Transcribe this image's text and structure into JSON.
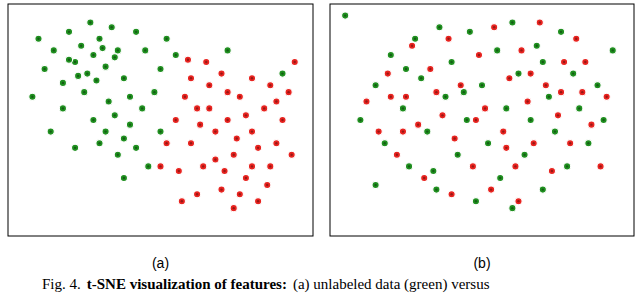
{
  "chart_data": [
    {
      "type": "scatter",
      "title": "(a)",
      "xlim": [
        0,
        100
      ],
      "ylim": [
        0,
        100
      ],
      "tick_labels": false,
      "marker": "ring",
      "series": [
        {
          "color": "#1f8f1f",
          "x": [
            8,
            12,
            15,
            18,
            20,
            22,
            24,
            26,
            28,
            30,
            32,
            34,
            36,
            38,
            25,
            18,
            28,
            32,
            35,
            38,
            40,
            42,
            36,
            30,
            44,
            48,
            50,
            45,
            42,
            52,
            55,
            40,
            46,
            38,
            50,
            14,
            22,
            10,
            27,
            33,
            20,
            29,
            23,
            35,
            31,
            72,
            90
          ],
          "values": [
            60,
            72,
            80,
            66,
            88,
            75,
            82,
            70,
            78,
            85,
            73,
            90,
            80,
            68,
            62,
            55,
            50,
            45,
            52,
            42,
            48,
            38,
            35,
            40,
            55,
            62,
            72,
            80,
            88,
            85,
            78,
            60,
            30,
            25,
            45,
            45,
            38,
            85,
            92,
            58,
            76,
            67,
            69,
            77,
            81,
            80,
            70
          ]
        },
        {
          "color": "#e8231f",
          "x": [
            55,
            58,
            60,
            62,
            64,
            66,
            68,
            70,
            72,
            74,
            76,
            78,
            80,
            82,
            84,
            86,
            88,
            90,
            92,
            70,
            65,
            60,
            52,
            56,
            62,
            74,
            80,
            85,
            75,
            68,
            63,
            78,
            82,
            88,
            93,
            57,
            72,
            66,
            80,
            76,
            86,
            94,
            50,
            59,
            71
          ],
          "values": [
            50,
            60,
            40,
            55,
            30,
            65,
            45,
            20,
            50,
            35,
            60,
            25,
            45,
            15,
            55,
            30,
            40,
            50,
            62,
            70,
            75,
            68,
            40,
            28,
            18,
            12,
            68,
            22,
            42,
            33,
            48,
            52,
            38,
            58,
            35,
            15,
            62,
            55,
            30,
            18,
            65,
            75,
            30,
            76,
            28
          ]
        }
      ]
    },
    {
      "type": "scatter",
      "title": "(b)",
      "xlim": [
        0,
        100
      ],
      "ylim": [
        0,
        100
      ],
      "tick_labels": false,
      "marker": "ring",
      "series": [
        {
          "color": "#1f8f1f",
          "x": [
            10,
            15,
            18,
            20,
            24,
            26,
            28,
            30,
            32,
            35,
            36,
            38,
            40,
            42,
            45,
            46,
            48,
            50,
            52,
            55,
            56,
            58,
            60,
            62,
            64,
            66,
            68,
            70,
            72,
            74,
            76,
            78,
            80,
            82,
            85,
            88,
            90,
            25,
            44,
            60,
            34,
            70,
            15,
            93,
            5
          ],
          "values": [
            50,
            65,
            40,
            78,
            55,
            30,
            85,
            68,
            45,
            20,
            90,
            60,
            75,
            35,
            50,
            88,
            15,
            65,
            40,
            80,
            25,
            55,
            92,
            70,
            35,
            50,
            82,
            20,
            60,
            45,
            88,
            30,
            70,
            55,
            40,
            65,
            50,
            72,
            62,
            12,
            28,
            75,
            22,
            80,
            95
          ]
        },
        {
          "color": "#e8231f",
          "x": [
            12,
            16,
            19,
            22,
            25,
            27,
            29,
            31,
            33,
            37,
            39,
            41,
            43,
            47,
            49,
            51,
            53,
            54,
            57,
            59,
            61,
            63,
            65,
            67,
            69,
            71,
            73,
            75,
            77,
            79,
            81,
            83,
            86,
            89,
            91,
            35,
            58,
            40,
            66,
            24,
            76,
            48,
            84,
            20,
            62
          ],
          "values": [
            58,
            45,
            70,
            35,
            60,
            82,
            48,
            25,
            72,
            52,
            85,
            42,
            65,
            30,
            78,
            55,
            20,
            90,
            45,
            68,
            30,
            80,
            58,
            40,
            92,
            65,
            28,
            52,
            75,
            40,
            85,
            62,
            48,
            30,
            60,
            62,
            38,
            18,
            70,
            45,
            62,
            50,
            75,
            60,
            15
          ]
        }
      ]
    }
  ],
  "caption": [
    "Fig. 4.",
    "t-SNE visualization of features:",
    "(a) unlabeled data (green) versus"
  ]
}
